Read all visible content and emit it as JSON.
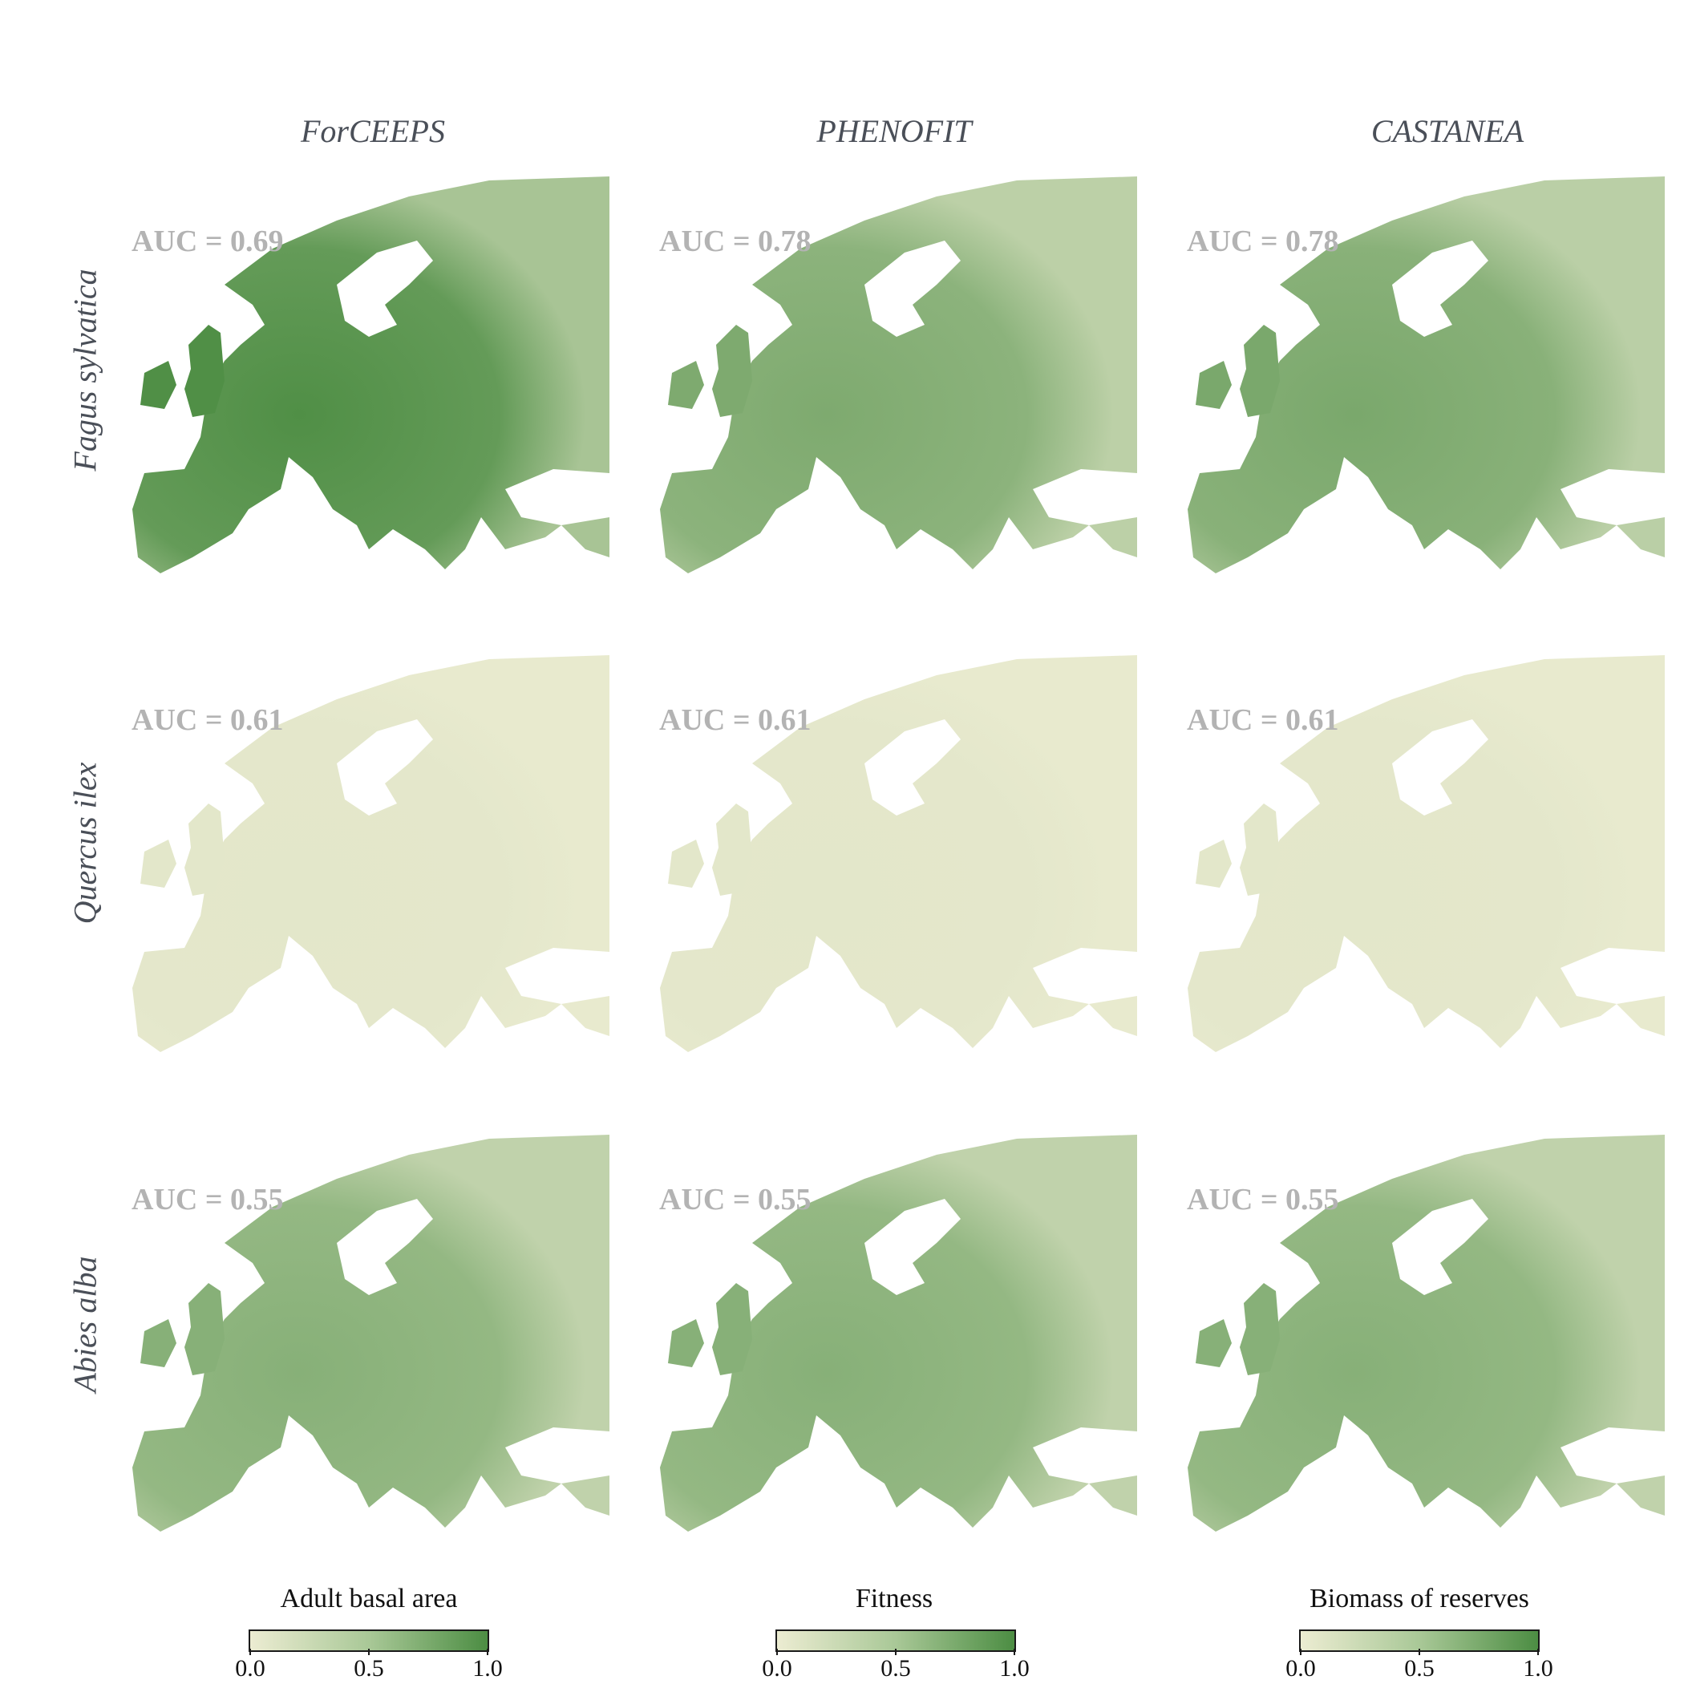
{
  "models": [
    {
      "name": "ForCEEPS",
      "legend": "Adult basal area"
    },
    {
      "name": "PHENOFIT",
      "legend": "Fitness"
    },
    {
      "name": "CASTANEA",
      "legend": "Biomass of reserves"
    }
  ],
  "species": [
    {
      "name": "Fagus sylvatica",
      "auc": [
        "AUC = 0.69",
        "AUC = 0.78",
        "AUC = 0.78"
      ],
      "intensity": [
        0.85,
        0.6,
        0.62
      ]
    },
    {
      "name": "Quercus ilex",
      "auc": [
        "AUC = 0.61",
        "AUC = 0.61",
        "AUC = 0.61"
      ],
      "intensity": [
        0.05,
        0.05,
        0.05
      ]
    },
    {
      "name": "Abies alba",
      "auc": [
        "AUC = 0.55",
        "AUC = 0.55",
        "AUC = 0.55"
      ],
      "intensity": [
        0.55,
        0.55,
        0.55
      ]
    }
  ],
  "colorbar": {
    "ticks": [
      "0.0",
      "0.5",
      "1.0"
    ],
    "low_color": "#ececd2",
    "mid_color": "#a9c897",
    "high_color": "#4c8d43"
  }
}
